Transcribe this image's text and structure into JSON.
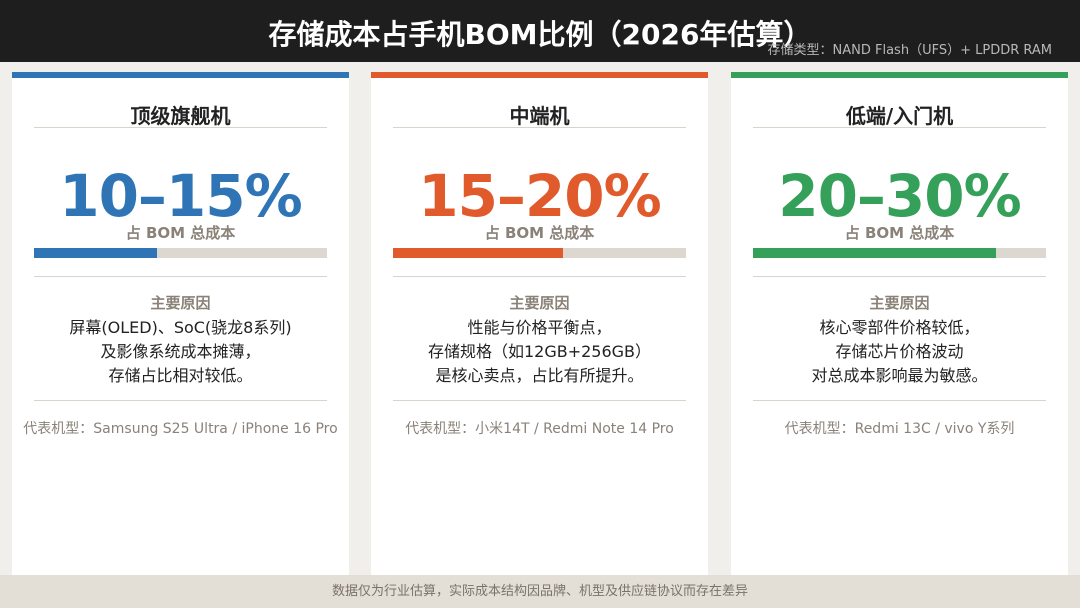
{
  "header": {
    "title": "存储成本占手机BOM比例（2026年估算）",
    "subtitle": "存储类型：NAND Flash（UFS）+ LPDDR RAM"
  },
  "cards": [
    {
      "title": "顶级旗舰机",
      "range": "10–15%",
      "caption": "占 BOM 总成本",
      "bar_percent": 42,
      "color": "#2f75b5",
      "reason_heading": "主要原因",
      "reasons": [
        "屏幕(OLED)、SoC(骁龙8系列)",
        "及影像系统成本摊薄，",
        "存储占比相对较低。"
      ],
      "models": "代表机型：Samsung S25 Ultra / iPhone 16 Pro"
    },
    {
      "title": "中端机",
      "range": "15–20%",
      "caption": "占 BOM 总成本",
      "bar_percent": 58,
      "color": "#e05a2b",
      "reason_heading": "主要原因",
      "reasons": [
        "性能与价格平衡点，",
        "存储规格（如12GB+256GB）",
        "是核心卖点，占比有所提升。"
      ],
      "models": "代表机型：小米14T / Redmi Note 14 Pro"
    },
    {
      "title": "低端/入门机",
      "range": "20–30%",
      "caption": "占 BOM 总成本",
      "bar_percent": 83,
      "color": "#35a05a",
      "reason_heading": "主要原因",
      "reasons": [
        "核心零部件价格较低，",
        "存储芯片价格波动",
        "对总成本影响最为敏感。"
      ],
      "models": "代表机型：Redmi 13C / vivo Y系列"
    }
  ],
  "footer": {
    "note": "数据仅为行业估算，实际成本结构因品牌、机型及供应链协议而存在差异"
  }
}
